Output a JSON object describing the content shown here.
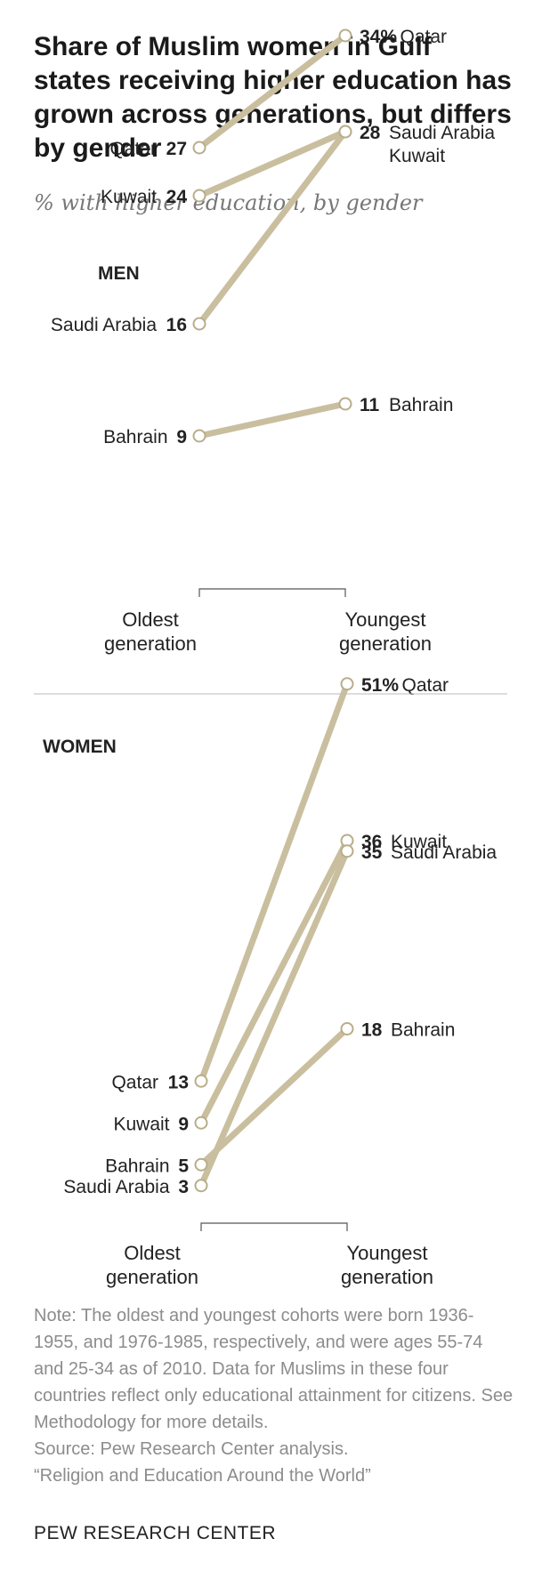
{
  "title": "Share of Muslim women in Gulf states receiving higher education has grown across generations, but differs by gender",
  "subtitle": "% with higher education, by gender",
  "colors": {
    "line": "#c9bf9f",
    "marker_fill": "#ffffff",
    "marker_stroke": "#b8ad8a",
    "divider": "#bbbbbb"
  },
  "chart_data": [
    {
      "type": "line",
      "panel_label": "MEN",
      "categories": [
        "Oldest generation",
        "Youngest generation"
      ],
      "x_labels": [
        [
          "Oldest",
          "generation"
        ],
        [
          "Youngest",
          "generation"
        ]
      ],
      "ylim": [
        0,
        40
      ],
      "series": [
        {
          "name": "Qatar",
          "values": [
            27,
            34
          ],
          "label_left": "Qatar",
          "value_left": "27",
          "label_right": "Qatar",
          "value_right": "34%"
        },
        {
          "name": "Kuwait",
          "values": [
            24,
            28
          ],
          "label_left": "Kuwait",
          "value_left": "24",
          "label_right": "Kuwait",
          "value_right": ""
        },
        {
          "name": "Saudi Arabia",
          "values": [
            16,
            28
          ],
          "label_left": "Saudi Arabia",
          "value_left": "16",
          "label_right": "Saudi Arabia",
          "value_right": "28"
        },
        {
          "name": "Bahrain",
          "values": [
            9,
            11
          ],
          "label_left": "Bahrain",
          "value_left": "9",
          "label_right": "Bahrain",
          "value_right": "11"
        }
      ]
    },
    {
      "type": "line",
      "panel_label": "WOMEN",
      "categories": [
        "Oldest generation",
        "Youngest generation"
      ],
      "x_labels": [
        [
          "Oldest",
          "generation"
        ],
        [
          "Youngest",
          "generation"
        ]
      ],
      "ylim": [
        0,
        55
      ],
      "series": [
        {
          "name": "Qatar",
          "values": [
            13,
            51
          ],
          "label_left": "Qatar",
          "value_left": "13",
          "label_right": "Qatar",
          "value_right": "51%"
        },
        {
          "name": "Kuwait",
          "values": [
            9,
            36
          ],
          "label_left": "Kuwait",
          "value_left": "9",
          "label_right": "Kuwait",
          "value_right": "36"
        },
        {
          "name": "Saudi Arabia",
          "values": [
            3,
            35
          ],
          "label_left": "Saudi Arabia",
          "value_left": "3",
          "label_right": "Saudi Arabia",
          "value_right": "35"
        },
        {
          "name": "Bahrain",
          "values": [
            5,
            18
          ],
          "label_left": "Bahrain",
          "value_left": "5",
          "label_right": "Bahrain",
          "value_right": "18"
        }
      ]
    }
  ],
  "note": "Note: The oldest and youngest cohorts were born 1936-1955, and 1976-1985, respectively, and were ages 55-74 and 25-34 as of 2010. Data for Muslims in these four countries reflect only educational attainment for citizens. See Methodology for more details.",
  "source": "Source: Pew Research Center analysis.",
  "source_title": "“Religion and Education Around the World”",
  "brand": "PEW RESEARCH CENTER"
}
